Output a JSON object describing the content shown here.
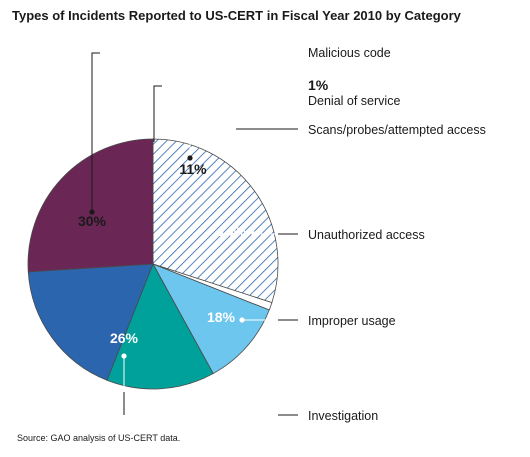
{
  "title": "Types of Incidents Reported to US-CERT in Fiscal Year 2010 by Category",
  "source": "Source: GAO analysis of US-CERT data.",
  "chart_data": {
    "type": "pie",
    "title": "Types of Incidents Reported to US-CERT in Fiscal Year 2010 by Category",
    "slices": [
      {
        "label": "Malicious code",
        "value": 30,
        "value_label": "30%",
        "color": "#ffffff",
        "pattern": "diagonal-hatch",
        "text_color": "#1a1a1a"
      },
      {
        "label": "Denial of service",
        "value": 1,
        "value_label": "1%",
        "color": "#ffffff",
        "text_color": "#1a1a1a"
      },
      {
        "label": "Scans/probes/attempted access",
        "value": 11,
        "value_label": "11%",
        "color": "#6cc6ee",
        "text_color": "#1a1a1a"
      },
      {
        "label": "Unauthorized access",
        "value": 14,
        "value_label": "14%",
        "color": "#00a19a",
        "text_color": "#ffffff"
      },
      {
        "label": "Improper usage",
        "value": 18,
        "value_label": "18%",
        "color": "#2a65ad",
        "text_color": "#ffffff"
      },
      {
        "label": "Investigation",
        "value": 26,
        "value_label": "26%",
        "color": "#6a2655",
        "text_color": "#ffffff"
      }
    ]
  }
}
